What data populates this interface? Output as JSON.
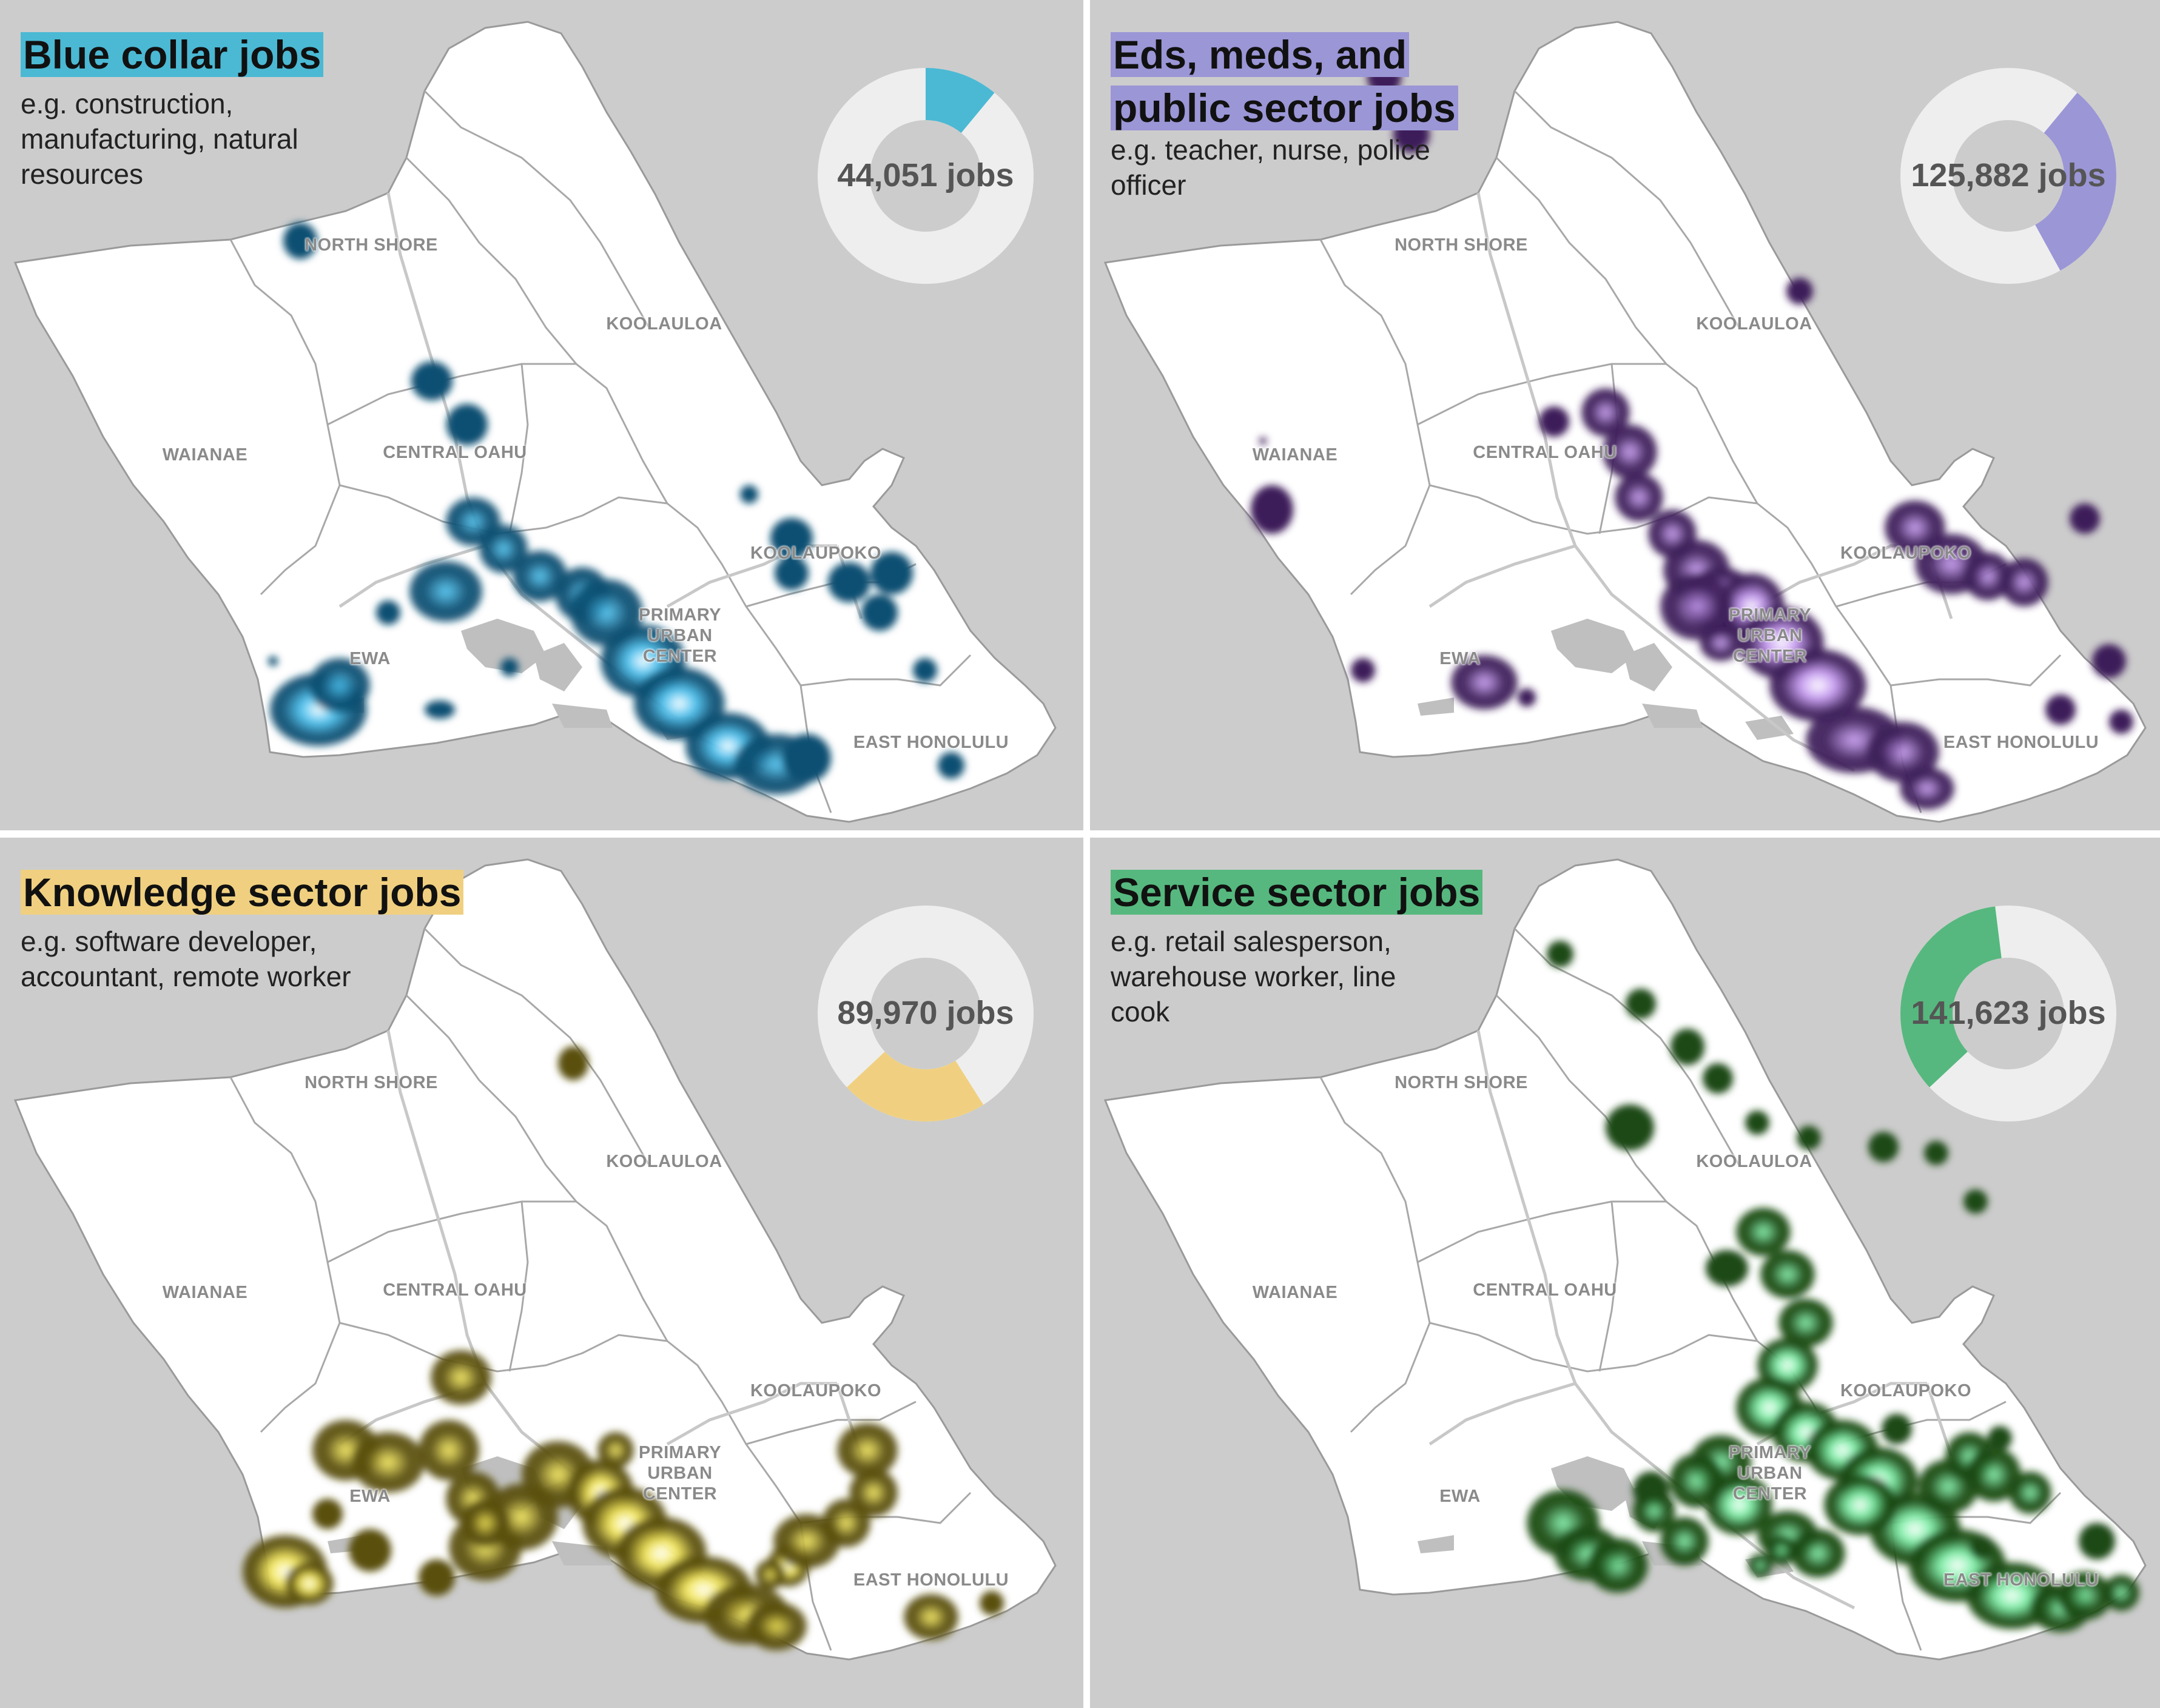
{
  "panels": [
    {
      "title": "Blue collar jobs",
      "examples": "e.g. construction, manufacturing, natural resources",
      "jobs_label": "44,051 jobs",
      "jobs": 44051,
      "share_fraction": 0.11,
      "accent": "#4bb9d4",
      "heat_color": "#0d4f72",
      "heat_glow": "#4ec3f0"
    },
    {
      "title": "Eds, meds, and public sector jobs",
      "examples": "e.g. teacher, nurse, police officer",
      "jobs_label": "125,882 jobs",
      "jobs": 125882,
      "share_fraction": 0.31,
      "accent": "#9b96d6",
      "heat_color": "#3e1f5a",
      "heat_glow": "#c79cf2"
    },
    {
      "title": "Knowledge sector jobs",
      "examples": "e.g. software developer, accountant, remote worker",
      "jobs_label": "89,970 jobs",
      "jobs": 89970,
      "share_fraction": 0.22,
      "accent": "#f0d080",
      "heat_color": "#5a4f10",
      "heat_glow": "#f4e85a"
    },
    {
      "title": "Service sector jobs",
      "examples": "e.g. retail salesperson, warehouse worker, line cook",
      "jobs_label": "141,623 jobs",
      "jobs": 141623,
      "share_fraction": 0.35,
      "accent": "#56b87e",
      "heat_color": "#1a4a12",
      "heat_glow": "#7ef0a8"
    }
  ],
  "region_labels": {
    "north_shore": "NORTH SHORE",
    "koolauloa": "KOOLAULOA",
    "waianae": "WAIANAE",
    "central_oahu": "CENTRAL OAHU",
    "koolaupoko": "KOOLAUPOKO",
    "primary_urban_center": "PRIMARY URBAN CENTER",
    "ewa": "EWA",
    "east_honolulu": "EAST HONOLULU"
  },
  "colors": {
    "panel_background": "#cccccc",
    "island_fill": "#ffffff",
    "donut_track": "#eeeeee"
  }
}
